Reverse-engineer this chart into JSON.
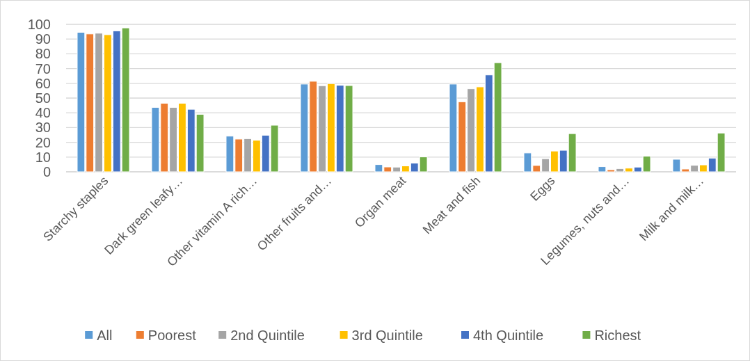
{
  "chart_data": {
    "type": "bar",
    "categories": [
      "Starchy staples",
      "Dark green leafy…",
      "Other vitamin A rich…",
      "Other fruits and…",
      "Organ meat",
      "Meat and fish",
      "Eggs",
      "Legumes, nuts and…",
      "Milk and milk…"
    ],
    "series": [
      {
        "name": "All",
        "color": "#5b9bd5",
        "values": [
          94.6,
          43.7,
          24.2,
          59.5,
          4.9,
          59.5,
          12.8,
          3.5,
          8.5
        ]
      },
      {
        "name": "Poorest",
        "color": "#ed7d31",
        "values": [
          93.5,
          46.5,
          22.2,
          61.4,
          3.3,
          47.5,
          4.3,
          1.4,
          1.9
        ]
      },
      {
        "name": "2nd Quintile",
        "color": "#a5a5a5",
        "values": [
          94,
          43.7,
          22.5,
          58.4,
          3.2,
          56.3,
          8.9,
          2.2,
          4.4
        ]
      },
      {
        "name": "3rd Quintile",
        "color": "#ffc000",
        "values": [
          93,
          46.5,
          21.4,
          59.8,
          4,
          57.6,
          14.1,
          2.5,
          4.7
        ]
      },
      {
        "name": "4th Quintile",
        "color": "#4472c4",
        "values": [
          95.6,
          42.4,
          24.8,
          58.7,
          5.9,
          65.7,
          14.6,
          3.2,
          9.3
        ]
      },
      {
        "name": "Richest",
        "color": "#70ad47",
        "values": [
          97.6,
          39,
          31.6,
          58.5,
          10.1,
          74,
          25.9,
          10.6,
          26.3
        ]
      }
    ],
    "ylim": [
      0,
      100
    ],
    "yticks": [
      0,
      10,
      20,
      30,
      40,
      50,
      60,
      70,
      80,
      90,
      100
    ],
    "grid": "y",
    "legend": "bottom"
  }
}
